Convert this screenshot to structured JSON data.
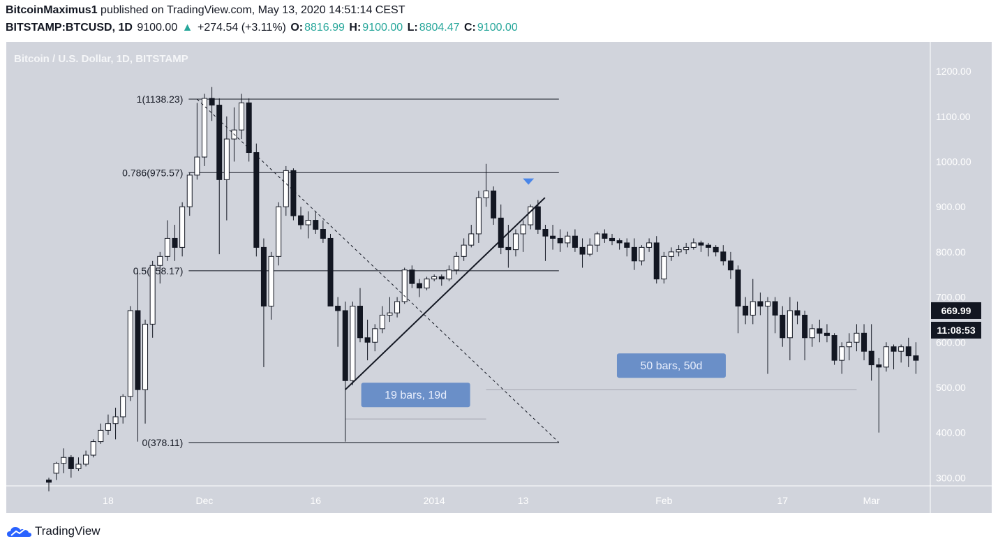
{
  "header": {
    "author": "BitcoinMaximus1",
    "published_text": "published on TradingView.com, May 13, 2020 14:51:14 CEST",
    "symbol": "BITSTAMP:BTCUSD, 1D",
    "last_price": "9100.00",
    "change_arrow": "▲",
    "change": "+274.54 (+3.11%)",
    "open_label": "O:",
    "open": "8816.99",
    "high_label": "H:",
    "high": "9100.00",
    "low_label": "L:",
    "low": "8804.47",
    "close_label": "C:",
    "close": "9100.00"
  },
  "footer": {
    "brand": "TradingView"
  },
  "colors": {
    "panel_bg": "#d1d4dc",
    "bull_body": "#ffffff",
    "bear_body": "#131722",
    "wick": "#131722",
    "label_box": "#6a8fc8",
    "marker": "#4a86e8",
    "price_tag": "#131722",
    "change_green": "#26a69a"
  },
  "chart_data": {
    "type": "candlestick",
    "title": "Bitcoin / U.S. Dollar, 1D, BITSTAMP",
    "ylim": [
      282,
      1265
    ],
    "y_ticks": [
      300,
      400,
      500,
      600,
      700,
      800,
      900,
      1000,
      1100,
      1200
    ],
    "y_tick_labels": [
      "300.00",
      "400.00",
      "500.00",
      "600.00",
      "700.00",
      "800.00",
      "900.00",
      "1000.00",
      "1100.00",
      "1200.00"
    ],
    "x_range": [
      "2013-11-10",
      "2014-03-08"
    ],
    "x_ticks": [
      {
        "date": "2013-11-18",
        "label": "18"
      },
      {
        "date": "2013-12-01",
        "label": "Dec"
      },
      {
        "date": "2013-12-16",
        "label": "16"
      },
      {
        "date": "2014-01-01",
        "label": "2014"
      },
      {
        "date": "2014-01-13",
        "label": "13"
      },
      {
        "date": "2014-02-01",
        "label": "Feb"
      },
      {
        "date": "2014-02-17",
        "label": "17"
      },
      {
        "date": "2014-03-01",
        "label": "Mar"
      }
    ],
    "candles": [
      [
        "2013-11-10",
        295,
        300,
        270,
        290
      ],
      [
        "2013-11-11",
        310,
        335,
        295,
        332
      ],
      [
        "2013-11-12",
        332,
        365,
        310,
        345
      ],
      [
        "2013-11-13",
        345,
        350,
        300,
        320
      ],
      [
        "2013-11-14",
        320,
        345,
        315,
        330
      ],
      [
        "2013-11-15",
        330,
        360,
        325,
        350
      ],
      [
        "2013-11-16",
        350,
        385,
        345,
        380
      ],
      [
        "2013-11-17",
        380,
        420,
        375,
        405
      ],
      [
        "2013-11-18",
        405,
        440,
        395,
        420
      ],
      [
        "2013-11-19",
        420,
        455,
        385,
        435
      ],
      [
        "2013-11-20",
        435,
        485,
        420,
        480
      ],
      [
        "2013-11-21",
        480,
        680,
        470,
        670
      ],
      [
        "2013-11-22",
        670,
        760,
        380,
        495
      ],
      [
        "2013-11-23",
        495,
        650,
        420,
        640
      ],
      [
        "2013-11-24",
        640,
        780,
        610,
        770
      ],
      [
        "2013-11-25",
        770,
        800,
        730,
        790
      ],
      [
        "2013-11-26",
        790,
        870,
        780,
        830
      ],
      [
        "2013-11-27",
        830,
        860,
        780,
        810
      ],
      [
        "2013-11-28",
        810,
        910,
        790,
        900
      ],
      [
        "2013-11-29",
        900,
        975,
        880,
        970
      ],
      [
        "2013-11-30",
        970,
        1130,
        960,
        1010
      ],
      [
        "2013-12-01",
        1010,
        1150,
        990,
        1140
      ],
      [
        "2013-12-02",
        1140,
        1165,
        1090,
        1125
      ],
      [
        "2013-12-03",
        1125,
        1140,
        795,
        960
      ],
      [
        "2013-12-04",
        960,
        1100,
        870,
        1050
      ],
      [
        "2013-12-05",
        1050,
        1120,
        1000,
        1070
      ],
      [
        "2013-12-06",
        1070,
        1150,
        1050,
        1130
      ],
      [
        "2013-12-07",
        1130,
        1140,
        1000,
        1020
      ],
      [
        "2013-12-08",
        1020,
        1040,
        790,
        810
      ],
      [
        "2013-12-09",
        810,
        830,
        545,
        680
      ],
      [
        "2013-12-10",
        680,
        800,
        650,
        790
      ],
      [
        "2013-12-11",
        790,
        910,
        770,
        900
      ],
      [
        "2013-12-12",
        900,
        990,
        880,
        980
      ],
      [
        "2013-12-13",
        980,
        985,
        870,
        880
      ],
      [
        "2013-12-14",
        880,
        900,
        850,
        860
      ],
      [
        "2013-12-15",
        860,
        890,
        830,
        870
      ],
      [
        "2013-12-16",
        870,
        890,
        840,
        850
      ],
      [
        "2013-12-17",
        850,
        870,
        820,
        830
      ],
      [
        "2013-12-18",
        830,
        840,
        680,
        680
      ],
      [
        "2013-12-19",
        680,
        700,
        590,
        670
      ],
      [
        "2013-12-20",
        670,
        690,
        380,
        515
      ],
      [
        "2013-12-21",
        515,
        690,
        505,
        680
      ],
      [
        "2013-12-22",
        680,
        720,
        600,
        610
      ],
      [
        "2013-12-23",
        610,
        650,
        560,
        600
      ],
      [
        "2013-12-24",
        600,
        640,
        580,
        630
      ],
      [
        "2013-12-25",
        630,
        680,
        620,
        660
      ],
      [
        "2013-12-26",
        660,
        700,
        645,
        665
      ],
      [
        "2013-12-27",
        665,
        700,
        655,
        690
      ],
      [
        "2013-12-28",
        690,
        765,
        685,
        760
      ],
      [
        "2013-12-29",
        760,
        770,
        720,
        730
      ],
      [
        "2013-12-30",
        730,
        740,
        700,
        720
      ],
      [
        "2013-12-31",
        720,
        745,
        715,
        740
      ],
      [
        "2014-01-01",
        740,
        750,
        735,
        745
      ],
      [
        "2014-01-02",
        745,
        750,
        725,
        740
      ],
      [
        "2014-01-03",
        740,
        770,
        735,
        760
      ],
      [
        "2014-01-04",
        760,
        800,
        750,
        790
      ],
      [
        "2014-01-05",
        790,
        830,
        780,
        815
      ],
      [
        "2014-01-06",
        815,
        860,
        810,
        840
      ],
      [
        "2014-01-07",
        840,
        935,
        820,
        920
      ],
      [
        "2014-01-08",
        920,
        995,
        900,
        935
      ],
      [
        "2014-01-09",
        935,
        945,
        860,
        875
      ],
      [
        "2014-01-10",
        875,
        905,
        795,
        810
      ],
      [
        "2014-01-11",
        810,
        860,
        765,
        805
      ],
      [
        "2014-01-12",
        805,
        850,
        790,
        840
      ],
      [
        "2014-01-13",
        840,
        870,
        800,
        860
      ],
      [
        "2014-01-14",
        860,
        905,
        850,
        900
      ],
      [
        "2014-01-15",
        900,
        915,
        840,
        850
      ],
      [
        "2014-01-16",
        850,
        860,
        780,
        835
      ],
      [
        "2014-01-17",
        835,
        860,
        805,
        830
      ],
      [
        "2014-01-18",
        830,
        850,
        800,
        820
      ],
      [
        "2014-01-19",
        820,
        845,
        810,
        835
      ],
      [
        "2014-01-20",
        835,
        850,
        800,
        810
      ],
      [
        "2014-01-21",
        810,
        830,
        765,
        795
      ],
      [
        "2014-01-22",
        795,
        830,
        790,
        815
      ],
      [
        "2014-01-23",
        815,
        845,
        800,
        840
      ],
      [
        "2014-01-24",
        840,
        850,
        820,
        830
      ],
      [
        "2014-01-25",
        830,
        840,
        815,
        825
      ],
      [
        "2014-01-26",
        825,
        830,
        805,
        820
      ],
      [
        "2014-01-27",
        820,
        830,
        790,
        810
      ],
      [
        "2014-01-28",
        810,
        830,
        760,
        780
      ],
      [
        "2014-01-29",
        780,
        815,
        770,
        810
      ],
      [
        "2014-01-30",
        810,
        830,
        800,
        820
      ],
      [
        "2014-01-31",
        820,
        835,
        730,
        740
      ],
      [
        "2014-02-01",
        740,
        800,
        730,
        790
      ],
      [
        "2014-02-02",
        790,
        810,
        780,
        800
      ],
      [
        "2014-02-03",
        800,
        815,
        790,
        805
      ],
      [
        "2014-02-04",
        805,
        820,
        795,
        810
      ],
      [
        "2014-02-05",
        810,
        830,
        805,
        820
      ],
      [
        "2014-02-06",
        820,
        825,
        800,
        815
      ],
      [
        "2014-02-07",
        815,
        820,
        790,
        810
      ],
      [
        "2014-02-08",
        810,
        815,
        790,
        800
      ],
      [
        "2014-02-09",
        800,
        815,
        770,
        780
      ],
      [
        "2014-02-10",
        780,
        800,
        740,
        760
      ],
      [
        "2014-02-11",
        760,
        770,
        620,
        680
      ],
      [
        "2014-02-12",
        680,
        700,
        640,
        660
      ],
      [
        "2014-02-13",
        660,
        740,
        640,
        690
      ],
      [
        "2014-02-14",
        690,
        710,
        660,
        680
      ],
      [
        "2014-02-15",
        680,
        700,
        530,
        690
      ],
      [
        "2014-02-16",
        690,
        700,
        620,
        660
      ],
      [
        "2014-02-17",
        660,
        680,
        590,
        610
      ],
      [
        "2014-02-18",
        610,
        700,
        560,
        670
      ],
      [
        "2014-02-19",
        670,
        690,
        640,
        660
      ],
      [
        "2014-02-20",
        660,
        670,
        560,
        610
      ],
      [
        "2014-02-21",
        610,
        640,
        590,
        630
      ],
      [
        "2014-02-22",
        630,
        650,
        600,
        620
      ],
      [
        "2014-02-23",
        620,
        640,
        600,
        615
      ],
      [
        "2014-02-24",
        615,
        620,
        550,
        560
      ],
      [
        "2014-02-25",
        560,
        600,
        530,
        590
      ],
      [
        "2014-02-26",
        590,
        620,
        560,
        600
      ],
      [
        "2014-02-27",
        600,
        640,
        580,
        620
      ],
      [
        "2014-02-28",
        620,
        640,
        560,
        580
      ],
      [
        "2014-03-01",
        580,
        640,
        515,
        550
      ],
      [
        "2014-03-02",
        550,
        565,
        400,
        545
      ],
      [
        "2014-03-03",
        545,
        600,
        535,
        590
      ],
      [
        "2014-03-04",
        590,
        595,
        540,
        580
      ],
      [
        "2014-03-05",
        580,
        595,
        555,
        590
      ],
      [
        "2014-03-06",
        590,
        610,
        545,
        570
      ],
      [
        "2014-03-07",
        570,
        600,
        530,
        560
      ]
    ],
    "fib_levels": [
      {
        "ratio": 1,
        "price": 1138.23,
        "label": "1(1138.23)"
      },
      {
        "ratio": 0.786,
        "price": 975.57,
        "label": "0.786(975.57)"
      },
      {
        "ratio": 0.5,
        "price": 758.17,
        "label": "0.5(758.17)"
      },
      {
        "ratio": 0,
        "price": 378.11,
        "label": "0(378.11)"
      }
    ],
    "fib_range_dates": [
      "2013-11-30",
      "2014-01-15"
    ],
    "diagonal_dashed": {
      "from": [
        "2013-11-30",
        1138.23
      ],
      "to": [
        "2014-01-15",
        378.11
      ]
    },
    "trendline": {
      "from": [
        "2013-12-20",
        495
      ],
      "to": [
        "2014-01-15",
        920
      ]
    },
    "marker": {
      "date": "2014-01-14",
      "price": 955
    },
    "date_ranges": [
      {
        "label": "19 bars, 19d",
        "from": "2013-12-20",
        "to": "2014-01-08",
        "price": 430
      },
      {
        "label": "50 bars, 50d",
        "from": "2014-01-08",
        "to": "2014-02-27",
        "price": 495
      }
    ],
    "price_tags": [
      {
        "label": "669.99",
        "price": 670
      },
      {
        "label": "11:08:53",
        "price": 630
      }
    ]
  }
}
